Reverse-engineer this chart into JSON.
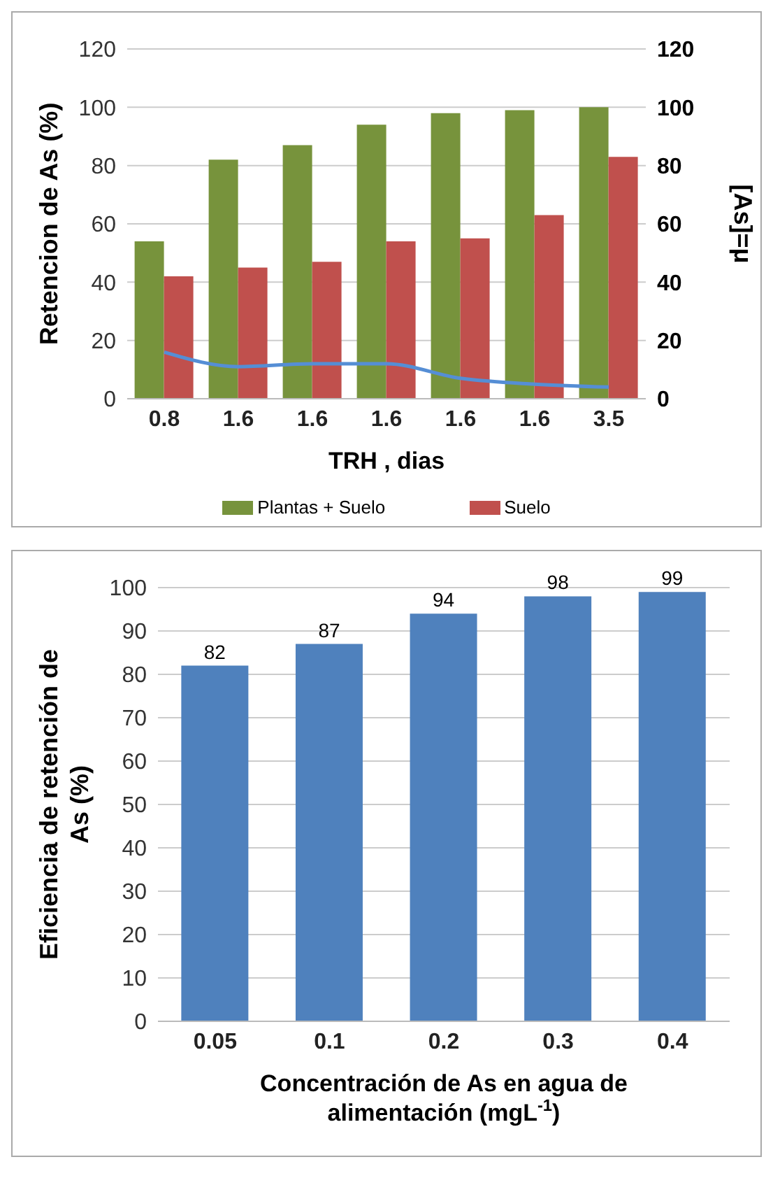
{
  "chart_data": [
    {
      "type": "bar",
      "xlabel": "TRH , dias",
      "ylabel": "Retencion  de As (%)",
      "y2label": "[As]=μ",
      "categories": [
        "0.8",
        "1.6",
        "1.6",
        "1.6",
        "1.6",
        "1.6",
        "3.5"
      ],
      "series": [
        {
          "name": "Plantas + Suelo",
          "color": "#77933c",
          "values": [
            54,
            82,
            87,
            94,
            98,
            99,
            100
          ]
        },
        {
          "name": "Suelo",
          "color": "#c0504d",
          "values": [
            42,
            45,
            47,
            54,
            55,
            63,
            83
          ]
        },
        {
          "type": "line",
          "axis": "y2",
          "color": "#558ed5",
          "values": [
            16,
            11,
            12,
            12,
            7,
            5,
            4
          ]
        }
      ],
      "ylim": [
        0,
        120
      ],
      "yticks": [
        0,
        20,
        40,
        60,
        80,
        100,
        120
      ],
      "y2lim": [
        0,
        120
      ],
      "y2ticks": [
        0,
        20,
        40,
        60,
        80,
        100,
        120
      ],
      "grid": "y",
      "legend": "bottom",
      "marker": "none"
    },
    {
      "type": "bar",
      "xlabel": "Concentración de As en agua de alimentación (mgL$^{-1}$)",
      "ylabel": "Eficiencia de retención de As (%)",
      "categories": [
        "0.05",
        "0.1",
        "0.2",
        "0.3",
        "0.4"
      ],
      "values": [
        82,
        87,
        94,
        98,
        99
      ],
      "color": "#4f81bd",
      "ylim": [
        0,
        100
      ],
      "yticks": [
        0,
        10,
        20,
        30,
        40,
        50,
        60,
        70,
        80,
        90,
        100
      ],
      "grid": "y",
      "data_labels": true
    }
  ]
}
